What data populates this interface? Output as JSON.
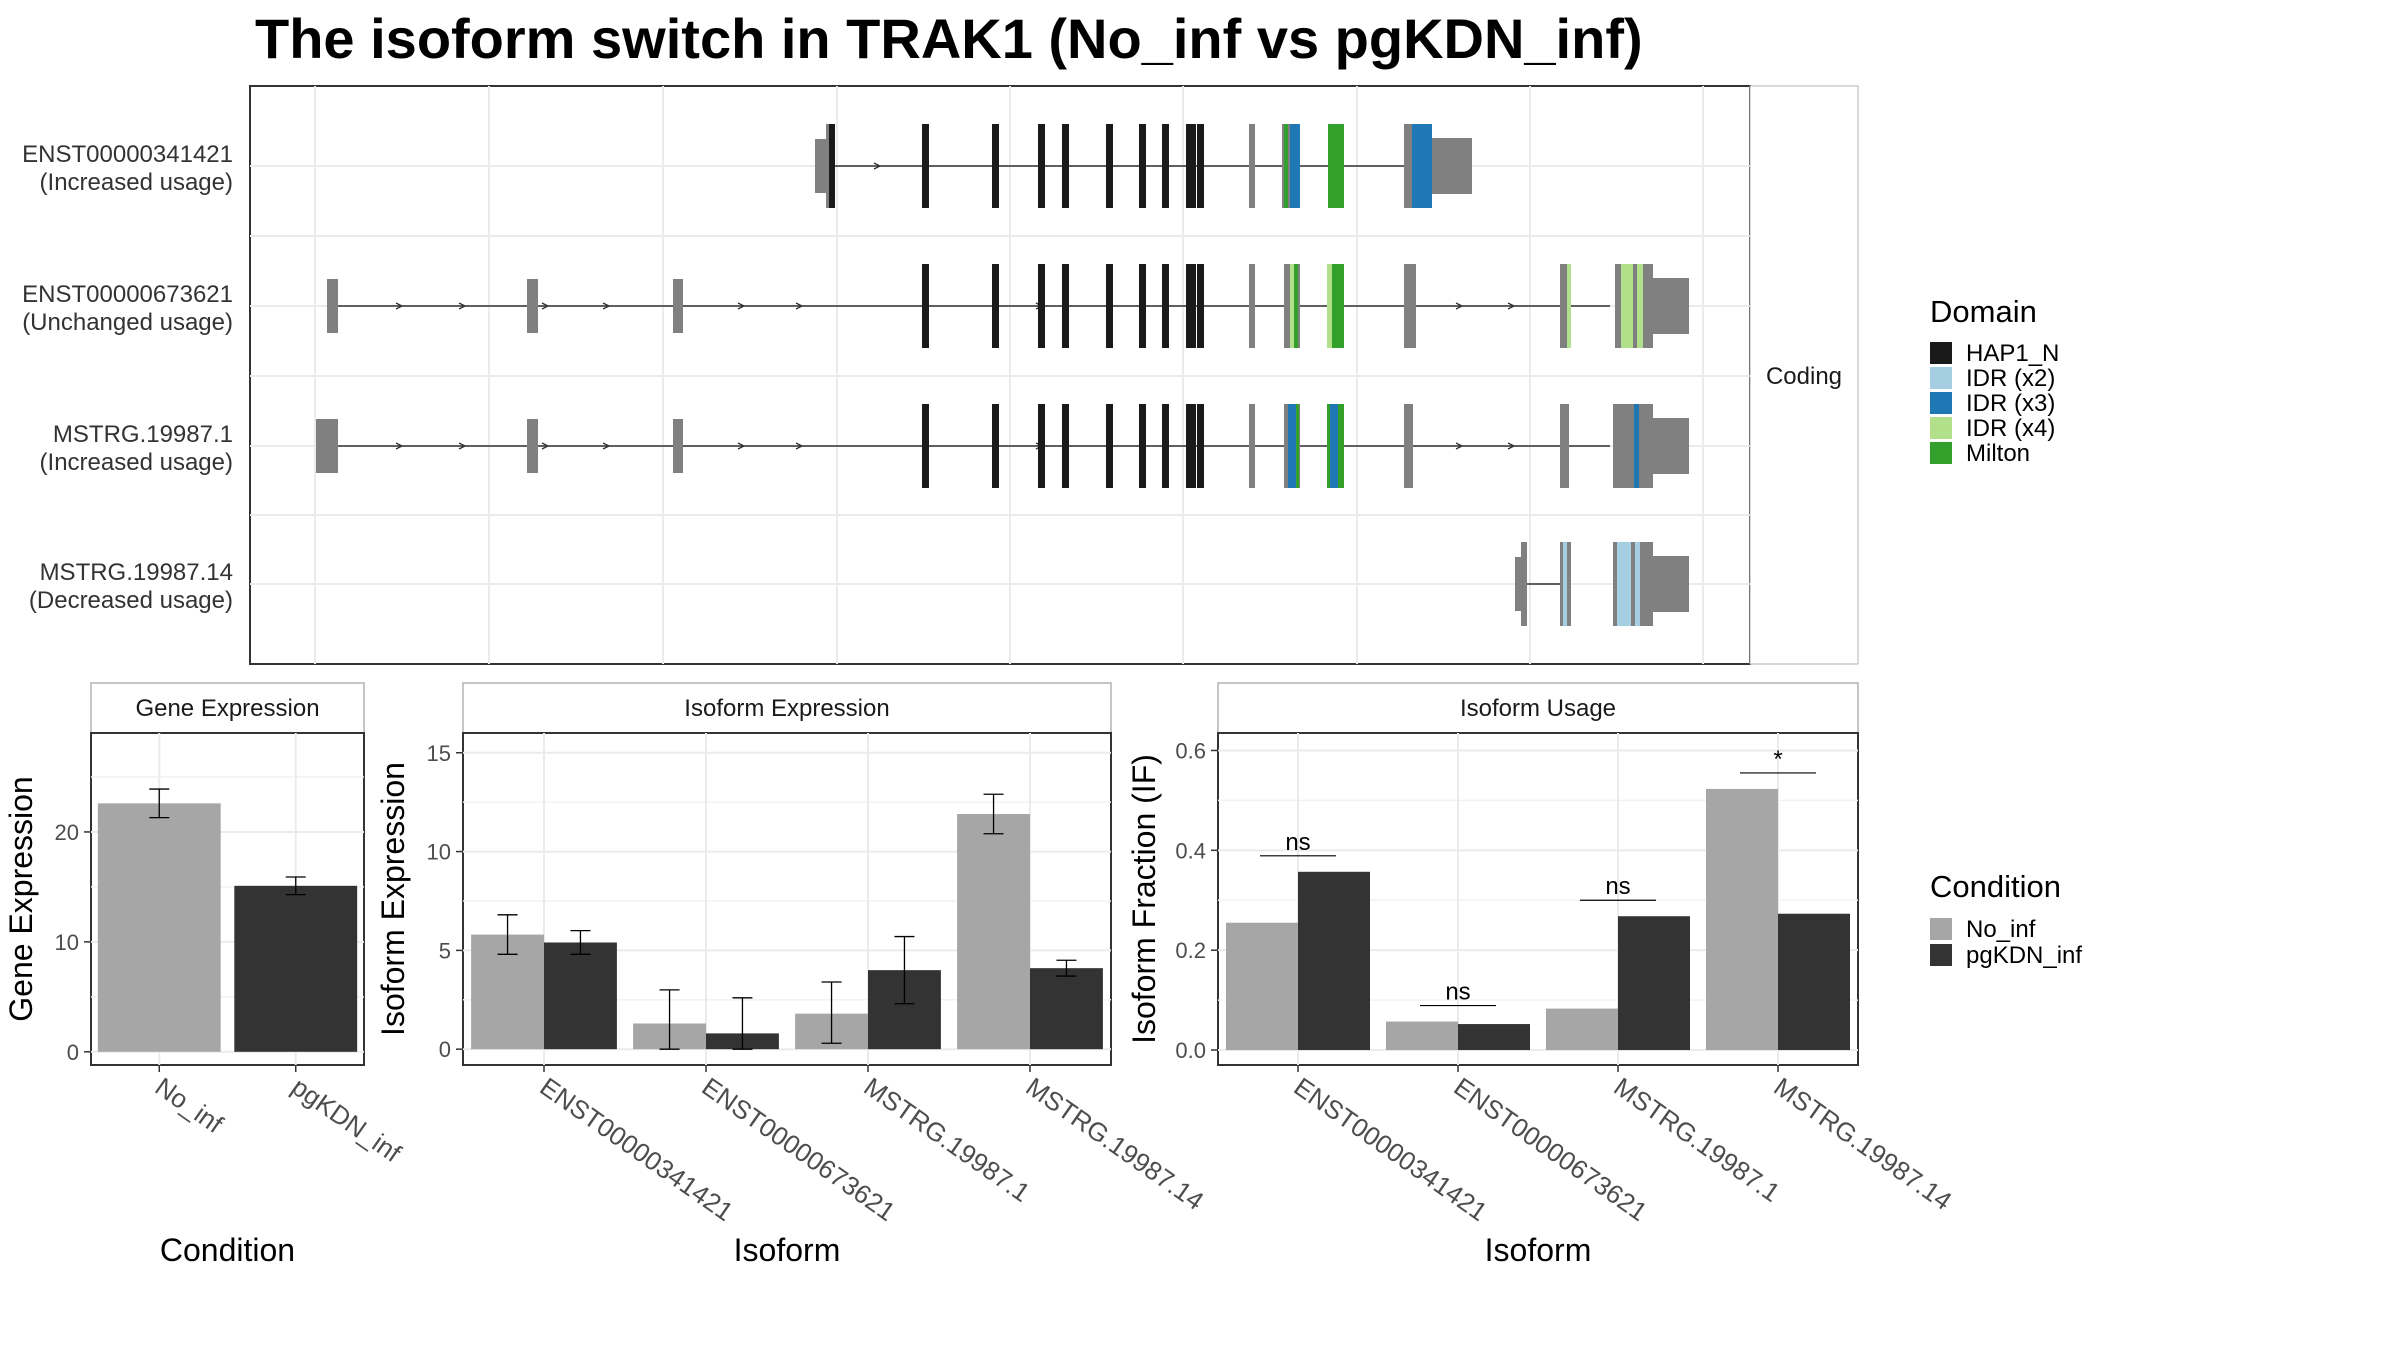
{
  "title": "The isoform switch in TRAK1 (No_inf vs pgKDN_inf)",
  "colors": {
    "No_inf": "#a6a6a6",
    "pgKDN_inf": "#333333",
    "HAP1_N": "#1a1a1a",
    "IDR (x2)": "#a6cee3",
    "IDR (x3)": "#1f78b4",
    "IDR (x4)": "#b2df8a",
    "Milton": "#33a02c",
    "noncoding": "#808080"
  },
  "chart_data": [
    {
      "type": "other",
      "subtype": "isoform structure (exon/intron tracks)",
      "facet_label": "Coding",
      "isoforms": [
        {
          "line1": "ENST00000341421",
          "line2": "(Increased usage)"
        },
        {
          "line1": "ENST00000673621",
          "line2": "(Unchanged usage)"
        },
        {
          "line1": "MSTRG.19987.1",
          "line2": "(Increased usage)"
        },
        {
          "line1": "MSTRG.19987.14",
          "line2": "(Decreased usage)"
        }
      ],
      "legend": {
        "title": "Domain",
        "items": [
          "HAP1_N",
          "IDR (x2)",
          "IDR (x3)",
          "IDR (x4)",
          "Milton"
        ]
      }
    },
    {
      "type": "bar",
      "facet_label": "Gene Expression",
      "xlabel": "Condition",
      "ylabel": "Gene Expression",
      "categories": [
        "No_inf",
        "pgKDN_inf"
      ],
      "values": [
        22.6,
        15.1
      ],
      "error_bars": [
        [
          21.3,
          23.9
        ],
        [
          14.3,
          15.9
        ]
      ],
      "ylim": [
        -1.2,
        29
      ],
      "yticks": [
        0,
        10,
        20
      ]
    },
    {
      "type": "bar",
      "facet_label": "Isoform Expression",
      "xlabel": "Isoform",
      "ylabel": "Isoform Expression",
      "categories": [
        "ENST00000341421",
        "ENST00000673621",
        "MSTRG.19987.1",
        "MSTRG.19987.14"
      ],
      "series": [
        {
          "name": "No_inf",
          "values": [
            5.8,
            1.3,
            1.8,
            11.9
          ],
          "error_bars": [
            [
              4.8,
              6.8
            ],
            [
              0.0,
              3.0
            ],
            [
              0.3,
              3.4
            ],
            [
              10.9,
              12.9
            ]
          ]
        },
        {
          "name": "pgKDN_inf",
          "values": [
            5.4,
            0.8,
            4.0,
            4.1
          ],
          "error_bars": [
            [
              4.8,
              6.0
            ],
            [
              0.0,
              2.6
            ],
            [
              2.3,
              5.7
            ],
            [
              3.7,
              4.5
            ]
          ]
        }
      ],
      "ylim": [
        -0.8,
        16
      ],
      "yticks": [
        0,
        5,
        10,
        15
      ]
    },
    {
      "type": "bar",
      "facet_label": "Isoform Usage",
      "xlabel": "Isoform",
      "ylabel": "Isoform Fraction (IF)",
      "categories": [
        "ENST00000341421",
        "ENST00000673621",
        "MSTRG.19987.1",
        "MSTRG.19987.14"
      ],
      "series": [
        {
          "name": "No_inf",
          "values": [
            0.255,
            0.057,
            0.083,
            0.523
          ]
        },
        {
          "name": "pgKDN_inf",
          "values": [
            0.357,
            0.052,
            0.268,
            0.273
          ]
        }
      ],
      "significance": [
        "ns",
        "ns",
        "ns",
        "*"
      ],
      "ylim": [
        -0.03,
        0.635
      ],
      "yticks": [
        0.0,
        0.2,
        0.4,
        0.6
      ],
      "ytick_labels": [
        "0.0",
        "0.2",
        "0.4",
        "0.6"
      ]
    }
  ],
  "condition_legend": {
    "title": "Condition",
    "items": [
      "No_inf",
      "pgKDN_inf"
    ]
  }
}
